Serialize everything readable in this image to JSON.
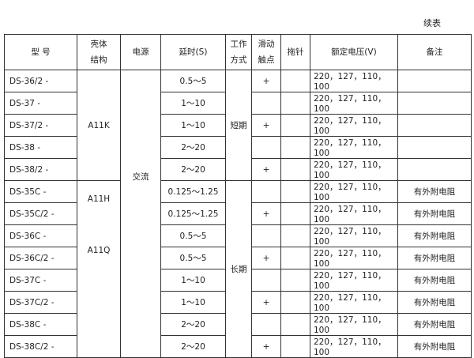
{
  "caption": "续表",
  "headers": {
    "model": "型  号",
    "shell": [
      "壳体",
      "结构"
    ],
    "power": "电源",
    "delay": "延时(S)",
    "mode": [
      "工作",
      "方式"
    ],
    "slide": [
      "滑动",
      "触点"
    ],
    "pointer": "拖针",
    "voltage": "额定电压(V)",
    "remark": "备注"
  },
  "shell_groups": [
    "A11K",
    "A11H",
    "A11Q"
  ],
  "power_value": "交流",
  "mode_groups": [
    "短期",
    "长期"
  ],
  "rows": [
    {
      "model": "DS-36/2 -",
      "delay": "0.5～5",
      "slide": "+",
      "voltage": "220，127，110，100",
      "remark": ""
    },
    {
      "model": "DS-37  -",
      "delay": "1～10",
      "slide": "",
      "voltage": "220，127，110，100",
      "remark": ""
    },
    {
      "model": "DS-37/2 -",
      "delay": "1～10",
      "slide": "+",
      "voltage": "220，127，110，100",
      "remark": ""
    },
    {
      "model": "DS-38  -",
      "delay": "2～20",
      "slide": "",
      "voltage": "220，127，110，100",
      "remark": ""
    },
    {
      "model": "DS-38/2 -",
      "delay": "2～20",
      "slide": "+",
      "voltage": "220，127，110，100",
      "remark": ""
    },
    {
      "model": "DS-35C  -",
      "delay": "0.125～1.25",
      "slide": "",
      "voltage": "220，127，110，100",
      "remark": "有外附电阻"
    },
    {
      "model": "DS-35C/2 -",
      "delay": "0.125～1.25",
      "slide": "+",
      "voltage": "220，127，110，100",
      "remark": "有外附电阻"
    },
    {
      "model": "DS-36C  -",
      "delay": "0.5～5",
      "slide": "",
      "voltage": "220，127，110，100",
      "remark": "有外附电阻"
    },
    {
      "model": "DS-36C/2 -",
      "delay": "0.5～5",
      "slide": "+",
      "voltage": "220，127，110，100",
      "remark": "有外附电阻"
    },
    {
      "model": "DS-37C  -",
      "delay": "1～10",
      "slide": "",
      "voltage": "220，127，110，100",
      "remark": "有外附电阻"
    },
    {
      "model": "DS-37C/2 -",
      "delay": "1～10",
      "slide": "+",
      "voltage": "220，127，110，100",
      "remark": "有外附电阻"
    },
    {
      "model": "DS-38C  -",
      "delay": "2～20",
      "slide": "",
      "voltage": "220，127，110，100",
      "remark": "有外附电阻"
    },
    {
      "model": "DS-38C/2  -",
      "delay": "2～20",
      "slide": "+",
      "voltage": "220，127，110，100",
      "remark": "有外附电阻"
    }
  ]
}
